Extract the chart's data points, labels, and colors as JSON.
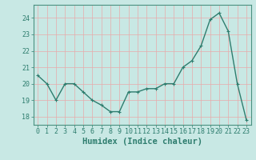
{
  "x": [
    0,
    1,
    2,
    3,
    4,
    5,
    6,
    7,
    8,
    9,
    10,
    11,
    12,
    13,
    14,
    15,
    16,
    17,
    18,
    19,
    20,
    21,
    22,
    23
  ],
  "y": [
    20.5,
    20.0,
    19.0,
    20.0,
    20.0,
    19.5,
    19.0,
    18.7,
    18.3,
    18.3,
    19.5,
    19.5,
    19.7,
    19.7,
    20.0,
    20.0,
    21.0,
    21.4,
    22.3,
    23.9,
    24.3,
    23.2,
    20.0,
    17.8
  ],
  "line_color": "#2e7d6e",
  "marker": "+",
  "bg_color": "#c8e8e4",
  "grid_color": "#e8aaaa",
  "xlabel": "Humidex (Indice chaleur)",
  "ylim": [
    17.5,
    24.8
  ],
  "xlim": [
    -0.5,
    23.5
  ],
  "yticks": [
    18,
    19,
    20,
    21,
    22,
    23,
    24
  ],
  "xticks": [
    0,
    1,
    2,
    3,
    4,
    5,
    6,
    7,
    8,
    9,
    10,
    11,
    12,
    13,
    14,
    15,
    16,
    17,
    18,
    19,
    20,
    21,
    22,
    23
  ],
  "tick_color": "#2e7d6e",
  "label_color": "#2e7d6e",
  "spine_color": "#4a9080",
  "font_size_axis": 6,
  "font_size_label": 7.5,
  "marker_size": 3,
  "linewidth": 1.0
}
